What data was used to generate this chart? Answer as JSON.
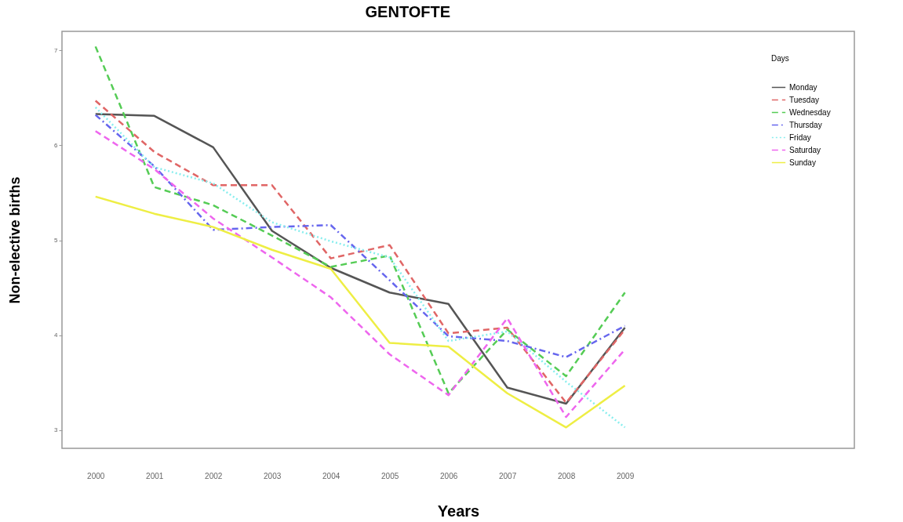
{
  "chart_data": {
    "type": "line",
    "title": "GENTOFTE",
    "xlabel": "Years",
    "ylabel": "Non-elective births",
    "legend_title": "Days",
    "legend": "top right",
    "grid": false,
    "marker": "none",
    "x": [
      2000,
      2001,
      2002,
      2003,
      2004,
      2005,
      2006,
      2007,
      2008,
      2009
    ],
    "xlim": [
      1999.43,
      2012.9
    ],
    "xticks": [
      2000,
      2001,
      2002,
      2003,
      2004,
      2005,
      2006,
      2007,
      2008,
      2009
    ],
    "ylim": [
      2.81,
      7.2
    ],
    "yticks": [
      3,
      4,
      5,
      6,
      7
    ],
    "series": [
      {
        "name": "Monday",
        "color": "#555555",
        "line_style": "solid",
        "values": [
          6.33,
          6.31,
          5.98,
          5.1,
          4.71,
          4.45,
          4.33,
          3.45,
          3.28,
          4.08
        ]
      },
      {
        "name": "Tuesday",
        "color": "#e06666",
        "line_style": "dashed",
        "values": [
          6.47,
          5.93,
          5.58,
          5.58,
          4.81,
          4.95,
          4.02,
          4.08,
          3.29,
          4.06
        ]
      },
      {
        "name": "Wednesday",
        "color": "#55cc55",
        "line_style": "dashed",
        "values": [
          7.04,
          5.56,
          5.37,
          5.05,
          4.72,
          4.84,
          3.39,
          4.06,
          3.57,
          4.45
        ]
      },
      {
        "name": "Thursday",
        "color": "#6666ee",
        "line_style": "dashdot",
        "values": [
          6.32,
          5.78,
          5.11,
          5.14,
          5.16,
          4.58,
          3.99,
          3.94,
          3.77,
          4.1
        ]
      },
      {
        "name": "Friday",
        "color": "#88eeee",
        "line_style": "dotted",
        "values": [
          6.4,
          5.77,
          5.6,
          5.19,
          4.99,
          4.82,
          3.94,
          4.04,
          3.51,
          3.03
        ]
      },
      {
        "name": "Saturday",
        "color": "#ee66ee",
        "line_style": "dashed",
        "values": [
          6.15,
          5.75,
          5.23,
          4.82,
          4.4,
          3.8,
          3.37,
          4.18,
          3.14,
          3.85
        ]
      },
      {
        "name": "Sunday",
        "color": "#eeee44",
        "line_style": "solid",
        "values": [
          5.46,
          5.28,
          5.14,
          4.9,
          4.7,
          3.92,
          3.88,
          3.39,
          3.03,
          3.47
        ]
      }
    ]
  }
}
